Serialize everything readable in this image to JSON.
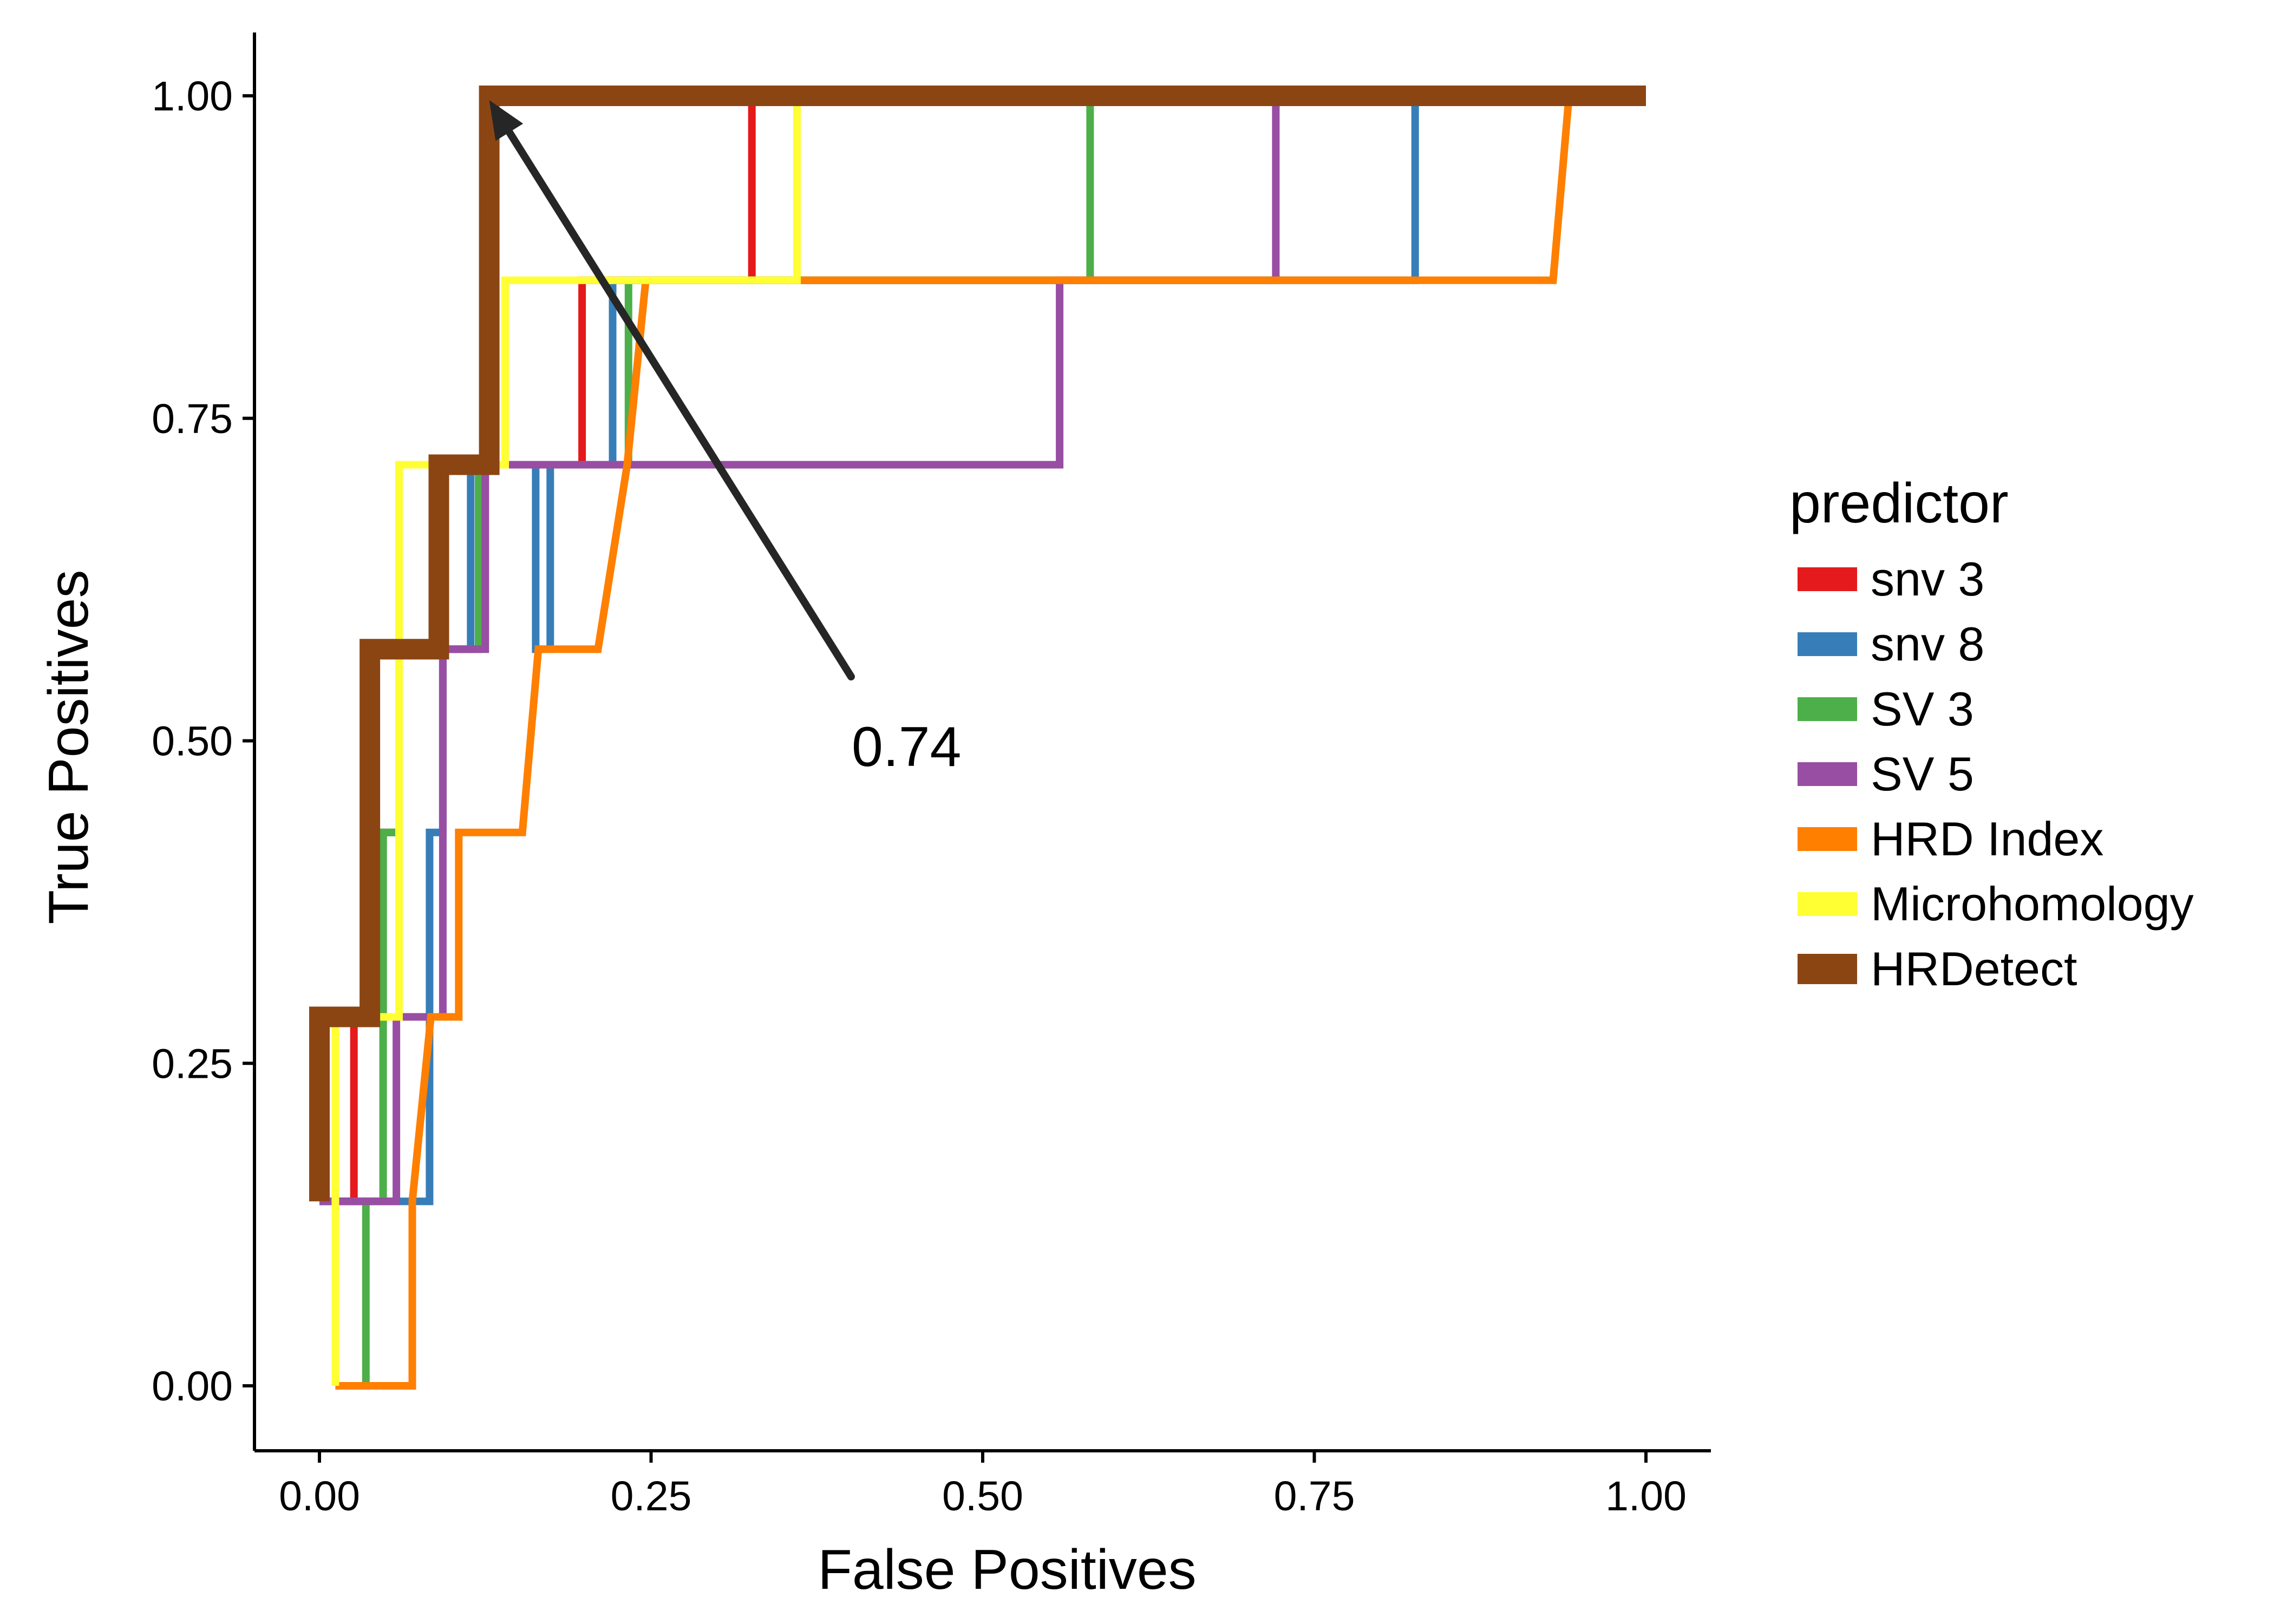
{
  "chart_data": {
    "type": "line",
    "title": "",
    "xlabel": "False Positives",
    "ylabel": "True Positives",
    "xlim": [
      0,
      1
    ],
    "ylim": [
      0,
      1
    ],
    "xticks": [
      "0.00",
      "0.25",
      "0.50",
      "0.75",
      "1.00"
    ],
    "yticks": [
      "0.00",
      "0.25",
      "0.50",
      "0.75",
      "1.00"
    ],
    "grid": false,
    "legend": {
      "title": "predictor",
      "position": "right"
    },
    "annotation": {
      "text": "0.74"
    },
    "series": [
      {
        "name": "snv 3",
        "color": "#e41a1c",
        "x": [
          0.0,
          0.026,
          0.026,
          0.048,
          0.048,
          0.06,
          0.06,
          0.198,
          0.198,
          0.326,
          0.326,
          1.0
        ],
        "y": [
          0.143,
          0.143,
          0.286,
          0.286,
          0.429,
          0.429,
          0.714,
          0.714,
          0.857,
          0.857,
          1.0,
          1.0
        ]
      },
      {
        "name": "snv 8",
        "color": "#377eb8",
        "x": [
          0.0,
          0.083,
          0.083,
          0.093,
          0.093,
          0.114,
          0.114,
          0.163,
          0.163,
          0.174,
          0.174,
          0.221,
          0.221,
          0.826,
          0.826,
          1.0
        ],
        "y": [
          0.143,
          0.143,
          0.429,
          0.429,
          0.571,
          0.571,
          0.714,
          0.714,
          0.571,
          0.571,
          0.714,
          0.714,
          0.857,
          0.857,
          1.0,
          1.0
        ]
      },
      {
        "name": "SV 3",
        "color": "#4daf4a",
        "x": [
          0.035,
          0.035,
          0.048,
          0.048,
          0.06,
          0.06,
          0.12,
          0.12,
          0.233,
          0.233,
          0.581,
          0.581,
          1.0
        ],
        "y": [
          0.0,
          0.143,
          0.143,
          0.429,
          0.429,
          0.571,
          0.571,
          0.714,
          0.714,
          0.857,
          0.857,
          1.0,
          1.0
        ]
      },
      {
        "name": "SV 5",
        "color": "#984ea3",
        "x": [
          0.0,
          0.058,
          0.058,
          0.093,
          0.093,
          0.125,
          0.125,
          0.558,
          0.558,
          0.721,
          0.721,
          1.0
        ],
        "y": [
          0.143,
          0.143,
          0.286,
          0.286,
          0.571,
          0.571,
          0.714,
          0.714,
          0.857,
          0.857,
          1.0,
          1.0
        ]
      },
      {
        "name": "HRD Index",
        "color": "#ff7f00",
        "x": [
          0.012,
          0.07,
          0.07,
          0.084,
          0.105,
          0.105,
          0.153,
          0.165,
          0.21,
          0.232,
          0.246,
          0.93,
          0.942,
          1.0
        ],
        "y": [
          0.0,
          0.0,
          0.143,
          0.286,
          0.286,
          0.429,
          0.429,
          0.571,
          0.571,
          0.714,
          0.857,
          0.857,
          1.0,
          1.0
        ]
      },
      {
        "name": "Microhomology",
        "color": "#ffff33",
        "x": [
          0.012,
          0.012,
          0.06,
          0.06,
          0.07,
          0.07,
          0.14,
          0.14,
          0.36,
          0.36,
          1.0
        ],
        "y": [
          0.0,
          0.286,
          0.286,
          0.714,
          0.714,
          0.714,
          0.714,
          0.857,
          0.857,
          1.0,
          1.0
        ]
      },
      {
        "name": "HRDetect",
        "color": "#8b4513",
        "x": [
          0.0,
          0.0,
          0.038,
          0.038,
          0.09,
          0.09,
          0.128,
          0.128,
          1.0
        ],
        "y": [
          0.143,
          0.286,
          0.286,
          0.571,
          0.571,
          0.714,
          0.714,
          1.0,
          1.0
        ]
      }
    ]
  }
}
